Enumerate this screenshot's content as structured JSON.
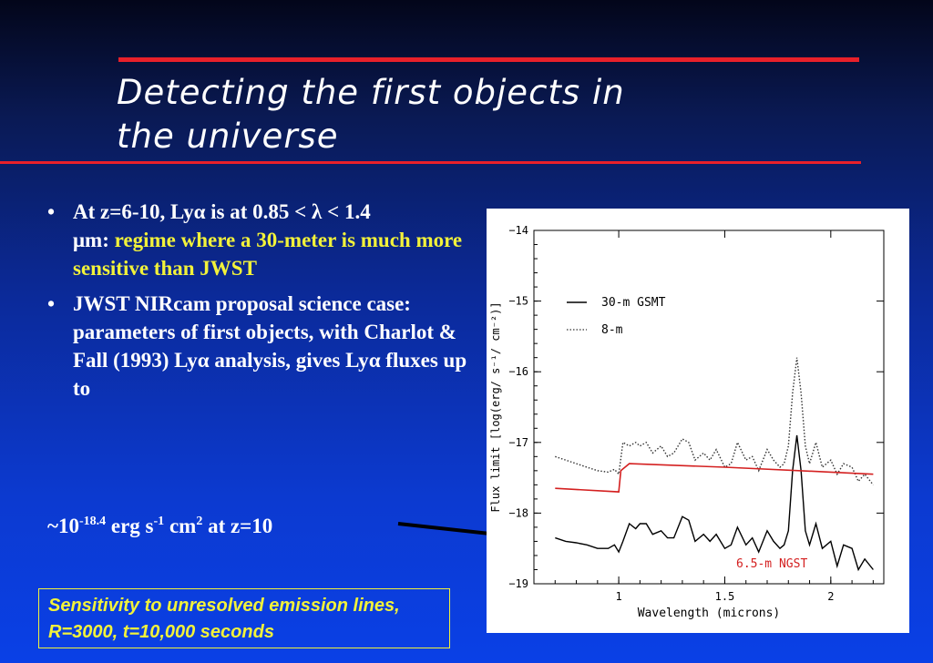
{
  "slide": {
    "title_line1": "Detecting the first objects in",
    "title_line2": "the universe",
    "bullet1_a": "At z=6-10, Ly",
    "bullet1_b": "α",
    "bullet1_c": " is at 0.85 < ",
    "bullet1_d": "λ",
    "bullet1_e": " < 1.4",
    "bullet1_f": "μ",
    "bullet1_g": "m: ",
    "bullet1_highlight": "regime where a 30-meter is much more sensitive than JWST",
    "bullet2_a": "JWST NIRcam proposal science case: parameters of first objects, with Charlot & Fall (1993) Ly",
    "bullet2_b": "α",
    "bullet2_c": " analysis, gives Ly",
    "bullet2_d": "α",
    "bullet2_e": " fluxes up to",
    "flux_prefix": "~10",
    "flux_exp": "-18.4",
    "flux_unit1": " erg s",
    "flux_unit1_exp": "-1",
    "flux_unit2": " cm",
    "flux_unit2_exp": "2",
    "flux_suffix": " at z=10",
    "note": "Sensitivity to unresolved emission lines, R=3000, t=10,000 seconds"
  },
  "colors": {
    "accent_rule": "#e8202a",
    "highlight_text": "#f2f23a",
    "series_30m": "#000000",
    "series_8m": "#333333",
    "series_ngst": "#d42020"
  },
  "chart_data": {
    "type": "line",
    "xlabel": "Wavelength (microns)",
    "ylabel": "Flux limit [log(erg/ s⁻¹/ cm⁻²)]",
    "xlim": [
      0.6,
      2.25
    ],
    "ylim": [
      -19,
      -14
    ],
    "x_ticks": [
      1,
      1.5,
      2
    ],
    "x_tick_labels": [
      "1",
      "1.5",
      "2"
    ],
    "y_ticks": [
      -14,
      -15,
      -16,
      -17,
      -18,
      -19
    ],
    "y_tick_labels": [
      "−14",
      "−15",
      "−16",
      "−17",
      "−18",
      "−19"
    ],
    "legend": [
      {
        "name": "30-m GSMT",
        "style": "solid"
      },
      {
        "name": "8-m",
        "style": "dotted"
      }
    ],
    "annotation": "6.5-m NGST",
    "series": [
      {
        "name": "30-m GSMT",
        "style": "solid",
        "x": [
          0.7,
          0.75,
          0.8,
          0.85,
          0.9,
          0.95,
          0.98,
          1.0,
          1.02,
          1.05,
          1.08,
          1.1,
          1.13,
          1.16,
          1.2,
          1.23,
          1.26,
          1.3,
          1.33,
          1.36,
          1.4,
          1.43,
          1.46,
          1.5,
          1.53,
          1.56,
          1.6,
          1.63,
          1.66,
          1.7,
          1.73,
          1.76,
          1.78,
          1.8,
          1.82,
          1.84,
          1.86,
          1.88,
          1.9,
          1.93,
          1.96,
          2.0,
          2.03,
          2.06,
          2.1,
          2.13,
          2.16,
          2.2
        ],
        "values": [
          -18.35,
          -18.4,
          -18.42,
          -18.45,
          -18.5,
          -18.5,
          -18.45,
          -18.55,
          -18.4,
          -18.15,
          -18.22,
          -18.15,
          -18.15,
          -18.3,
          -18.25,
          -18.35,
          -18.35,
          -18.05,
          -18.1,
          -18.4,
          -18.3,
          -18.4,
          -18.3,
          -18.5,
          -18.45,
          -18.2,
          -18.45,
          -18.35,
          -18.55,
          -18.25,
          -18.4,
          -18.5,
          -18.45,
          -18.25,
          -17.4,
          -16.9,
          -17.4,
          -18.25,
          -18.45,
          -18.15,
          -18.5,
          -18.4,
          -18.75,
          -18.45,
          -18.5,
          -18.8,
          -18.65,
          -18.8
        ]
      },
      {
        "name": "8-m",
        "style": "dotted",
        "x": [
          0.7,
          0.75,
          0.8,
          0.85,
          0.9,
          0.95,
          0.98,
          1.0,
          1.02,
          1.05,
          1.08,
          1.1,
          1.13,
          1.16,
          1.2,
          1.23,
          1.26,
          1.3,
          1.33,
          1.36,
          1.4,
          1.43,
          1.46,
          1.5,
          1.53,
          1.56,
          1.6,
          1.63,
          1.66,
          1.7,
          1.73,
          1.76,
          1.78,
          1.8,
          1.82,
          1.84,
          1.86,
          1.88,
          1.9,
          1.93,
          1.96,
          2.0,
          2.03,
          2.06,
          2.1,
          2.13,
          2.16,
          2.2
        ],
        "values": [
          -17.2,
          -17.25,
          -17.3,
          -17.35,
          -17.4,
          -17.42,
          -17.38,
          -17.45,
          -17.0,
          -17.05,
          -17.0,
          -17.05,
          -17.0,
          -17.15,
          -17.05,
          -17.2,
          -17.15,
          -16.95,
          -17.0,
          -17.25,
          -17.15,
          -17.25,
          -17.1,
          -17.35,
          -17.3,
          -17.0,
          -17.25,
          -17.2,
          -17.4,
          -17.1,
          -17.25,
          -17.35,
          -17.3,
          -17.05,
          -16.3,
          -15.8,
          -16.3,
          -17.05,
          -17.3,
          -17.0,
          -17.35,
          -17.25,
          -17.45,
          -17.3,
          -17.35,
          -17.55,
          -17.45,
          -17.6
        ]
      },
      {
        "name": "6.5-m NGST",
        "style": "solid",
        "x": [
          0.7,
          1.0,
          1.01,
          1.05,
          1.5,
          2.0,
          2.2
        ],
        "values": [
          -17.65,
          -17.7,
          -17.4,
          -17.3,
          -17.35,
          -17.42,
          -17.45
        ]
      }
    ]
  }
}
